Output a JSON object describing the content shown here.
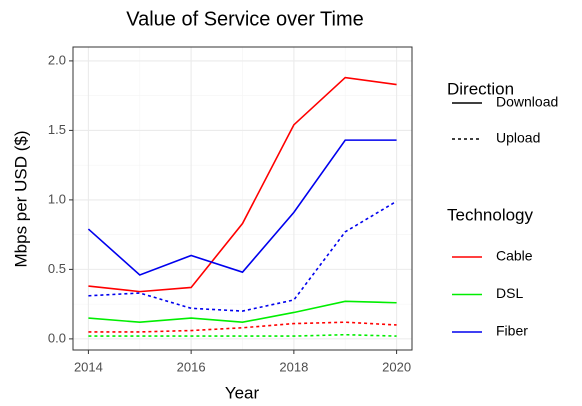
{
  "chart_data": {
    "type": "line",
    "title": "Value of Service over Time",
    "x_label": "Year",
    "y_label": "Mbps per USD ($)",
    "x": [
      2014,
      2015,
      2016,
      2017,
      2018,
      2019,
      2020
    ],
    "xlim": [
      2013.7,
      2020.3
    ],
    "xticks": [
      2014,
      2016,
      2018,
      2020
    ],
    "xminorticks": [
      2015,
      2017,
      2019
    ],
    "ylim": [
      -0.08,
      2.1
    ],
    "yticks": [
      {
        "value": 0,
        "label": "0.0"
      },
      0.5,
      {
        "value": 1,
        "label": "1.0"
      },
      1.5,
      {
        "value": 2,
        "label": "2.0"
      }
    ],
    "yminorticks": [
      0.25,
      0.75,
      1.25,
      1.75
    ],
    "grid": true,
    "legends": [
      {
        "title": "Direction",
        "items": [
          {
            "name": "Download",
            "dash": "none"
          },
          {
            "name": "Upload",
            "dash": "3 3"
          }
        ]
      },
      {
        "title": "Technology",
        "items": [
          {
            "name": "Cable",
            "color": "#ff0000"
          },
          {
            "name": "DSL",
            "color": "#00ee00"
          },
          {
            "name": "Fiber",
            "color": "#0000ee"
          }
        ]
      }
    ],
    "series": [
      {
        "technology": "Cable",
        "direction": "Download",
        "values": [
          0.38,
          0.34,
          0.37,
          0.83,
          1.54,
          1.88,
          1.83
        ]
      },
      {
        "technology": "DSL",
        "direction": "Download",
        "values": [
          0.15,
          0.12,
          0.15,
          0.12,
          0.19,
          0.27,
          0.26
        ]
      },
      {
        "technology": "Fiber",
        "direction": "Download",
        "values": [
          0.79,
          0.46,
          0.6,
          0.48,
          0.91,
          1.43,
          1.43
        ]
      },
      {
        "technology": "Cable",
        "direction": "Upload",
        "values": [
          0.05,
          0.05,
          0.06,
          0.08,
          0.11,
          0.12,
          0.1
        ]
      },
      {
        "technology": "DSL",
        "direction": "Upload",
        "values": [
          0.02,
          0.02,
          0.02,
          0.02,
          0.02,
          0.03,
          0.02
        ]
      },
      {
        "technology": "Fiber",
        "direction": "Upload",
        "values": [
          0.31,
          0.33,
          0.22,
          0.2,
          0.28,
          0.77,
          0.99
        ]
      }
    ]
  }
}
